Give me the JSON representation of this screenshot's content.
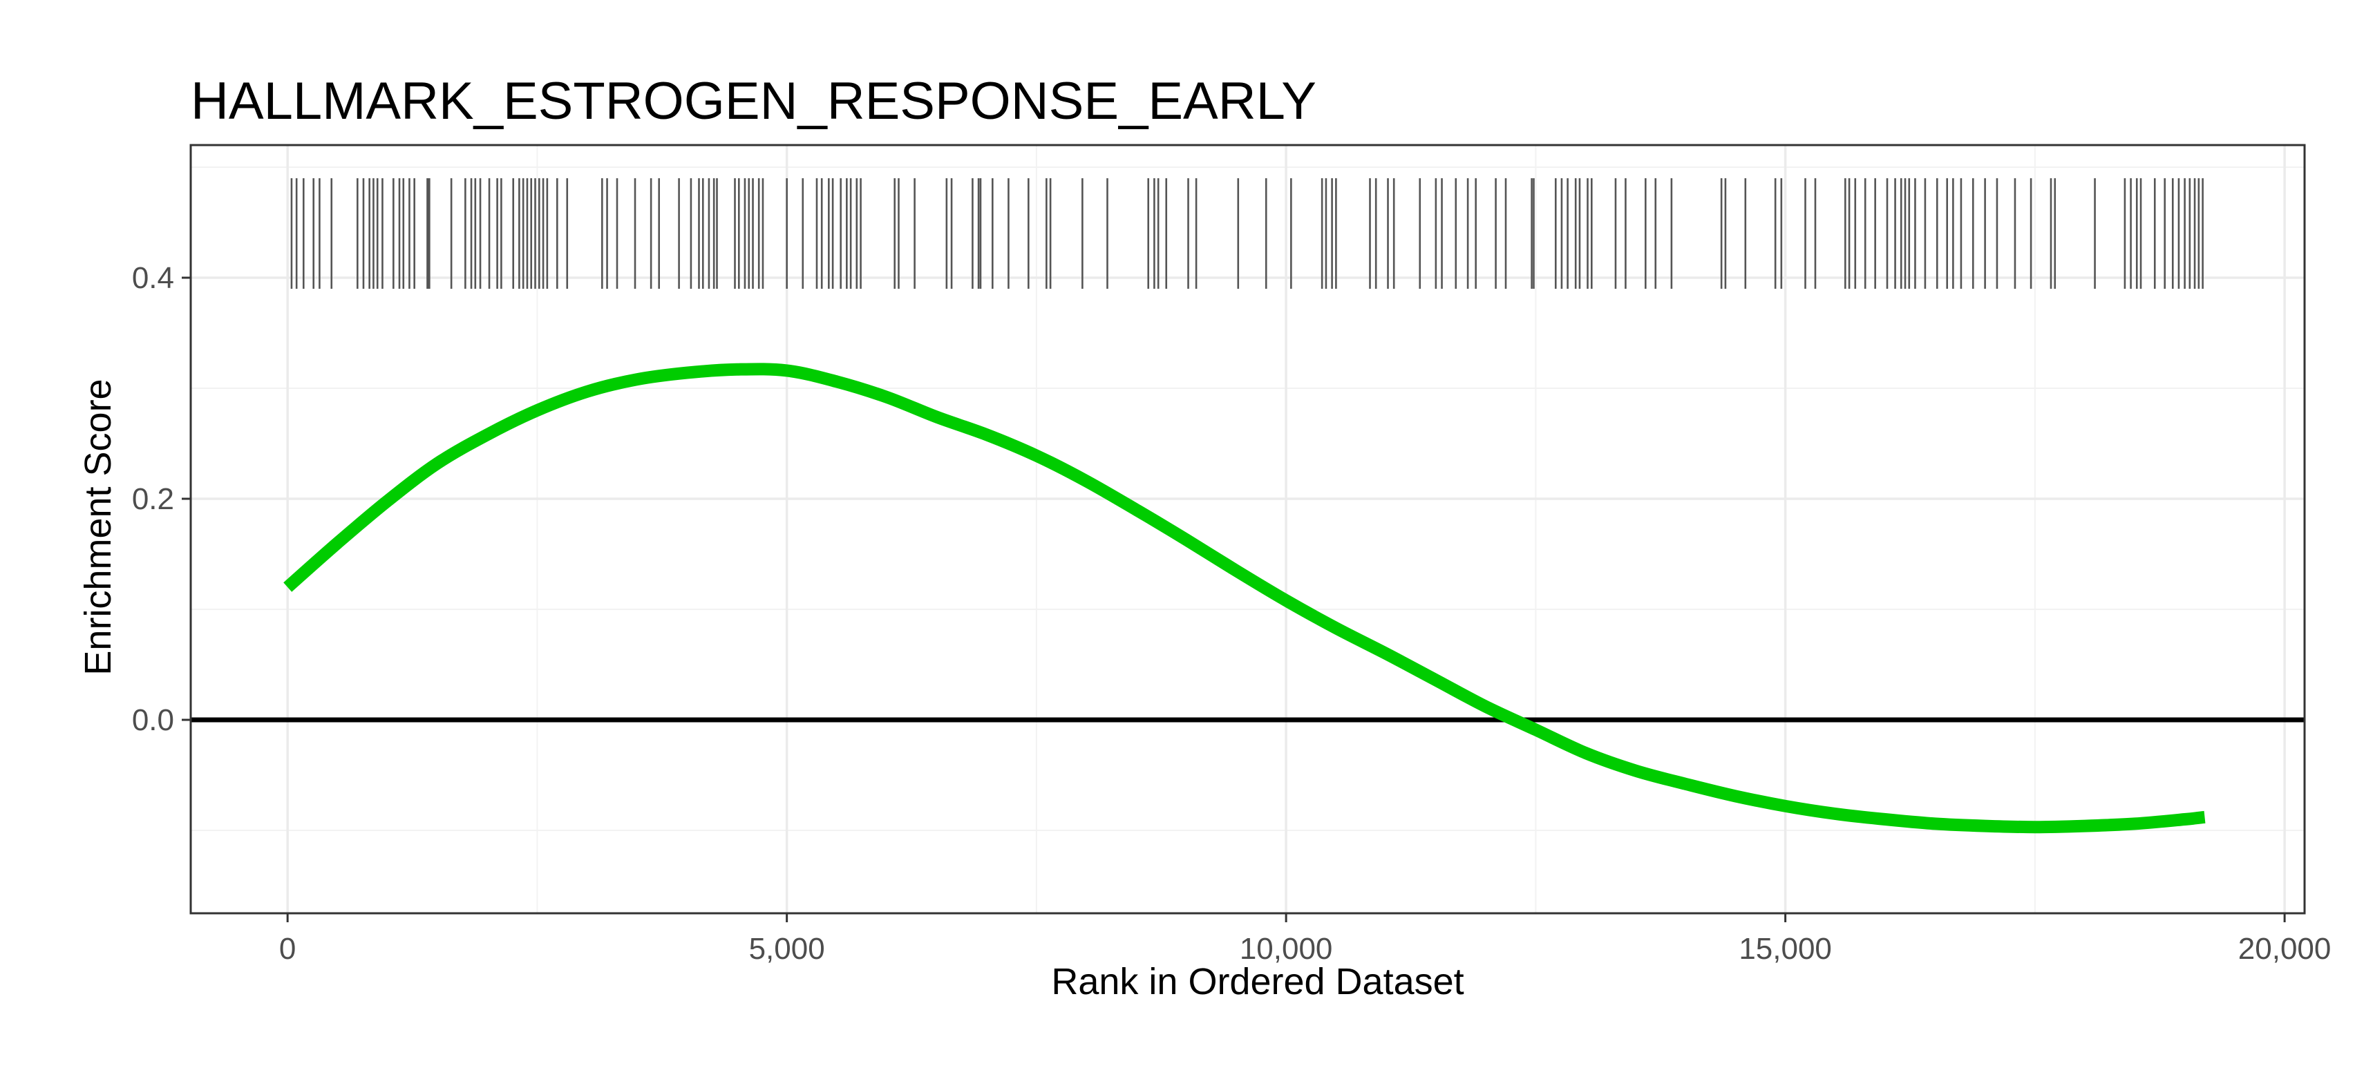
{
  "chart_data": {
    "type": "line",
    "title": "HALLMARK_ESTROGEN_RESPONSE_EARLY",
    "xlabel": "Rank in Ordered Dataset",
    "ylabel": "Enrichment Score",
    "xlim": [
      -970,
      20200
    ],
    "ylim": [
      -0.175,
      0.52
    ],
    "x_ticks": [
      0,
      5000,
      10000,
      15000,
      20000
    ],
    "x_tick_labels": [
      "0",
      "5,000",
      "10,000",
      "15,000",
      "20,000"
    ],
    "y_ticks": [
      0.0,
      0.2,
      0.4
    ],
    "y_tick_labels": [
      "0.0",
      "0.2",
      "0.4"
    ],
    "grid": true,
    "zero_line": 0,
    "hit_ticks_range": [
      0.39,
      0.49
    ],
    "series": [
      {
        "color": "#00cc00",
        "x": [
          0,
          500,
          1000,
          1500,
          2000,
          2500,
          3000,
          3500,
          4000,
          4500,
          5000,
          5500,
          6000,
          6500,
          7000,
          7500,
          8000,
          8500,
          9000,
          9500,
          10000,
          10500,
          11000,
          11500,
          12000,
          12500,
          13000,
          13500,
          14000,
          14500,
          15000,
          15500,
          16000,
          16500,
          17000,
          17500,
          18000,
          18500,
          19000,
          19200
        ],
        "y": [
          0.12,
          0.16,
          0.198,
          0.232,
          0.258,
          0.28,
          0.297,
          0.308,
          0.314,
          0.317,
          0.316,
          0.306,
          0.292,
          0.274,
          0.258,
          0.239,
          0.216,
          0.19,
          0.163,
          0.135,
          0.108,
          0.083,
          0.06,
          0.036,
          0.012,
          -0.009,
          -0.03,
          -0.046,
          -0.058,
          -0.069,
          -0.078,
          -0.085,
          -0.09,
          -0.094,
          -0.096,
          -0.097,
          -0.096,
          -0.094,
          -0.09,
          -0.088
        ]
      }
    ],
    "hits": [
      40,
      90,
      160,
      260,
      320,
      440,
      700,
      760,
      820,
      860,
      900,
      950,
      1060,
      1120,
      1160,
      1220,
      1270,
      1400,
      1410,
      1420,
      1640,
      1780,
      1840,
      1880,
      1930,
      2020,
      2100,
      2140,
      2260,
      2320,
      2360,
      2400,
      2440,
      2480,
      2520,
      2560,
      2600,
      2700,
      2800,
      3150,
      3200,
      3300,
      3480,
      3640,
      3720,
      3920,
      4040,
      4120,
      4160,
      4220,
      4270,
      4300,
      4480,
      4520,
      4580,
      4620,
      4660,
      4720,
      4760,
      5000,
      5160,
      5300,
      5350,
      5420,
      5460,
      5540,
      5600,
      5640,
      5700,
      5740,
      6080,
      6120,
      6280,
      6600,
      6650,
      6860,
      6920,
      6940,
      7060,
      7220,
      7420,
      7600,
      7640,
      7960,
      8210,
      8620,
      8680,
      8720,
      8800,
      9020,
      9100,
      9520,
      9800,
      10050,
      10360,
      10400,
      10460,
      10500,
      10840,
      10900,
      11020,
      11080,
      11340,
      11500,
      11560,
      11700,
      11820,
      11900,
      12100,
      12200,
      12460,
      12480,
      12700,
      12760,
      12820,
      12900,
      12940,
      13020,
      13060,
      13300,
      13400,
      13600,
      13700,
      13860,
      14360,
      14400,
      14600,
      14900,
      14960,
      15200,
      15300,
      15600,
      15640,
      15700,
      15800,
      15900,
      16020,
      16100,
      16160,
      16200,
      16240,
      16300,
      16400,
      16520,
      16620,
      16680,
      16760,
      16880,
      17000,
      17120,
      17300,
      17460,
      17660,
      17700,
      18100,
      18400,
      18460,
      18520,
      18560,
      18700,
      18800,
      18880,
      18940,
      19000,
      19050,
      19100,
      19140,
      19180
    ]
  }
}
